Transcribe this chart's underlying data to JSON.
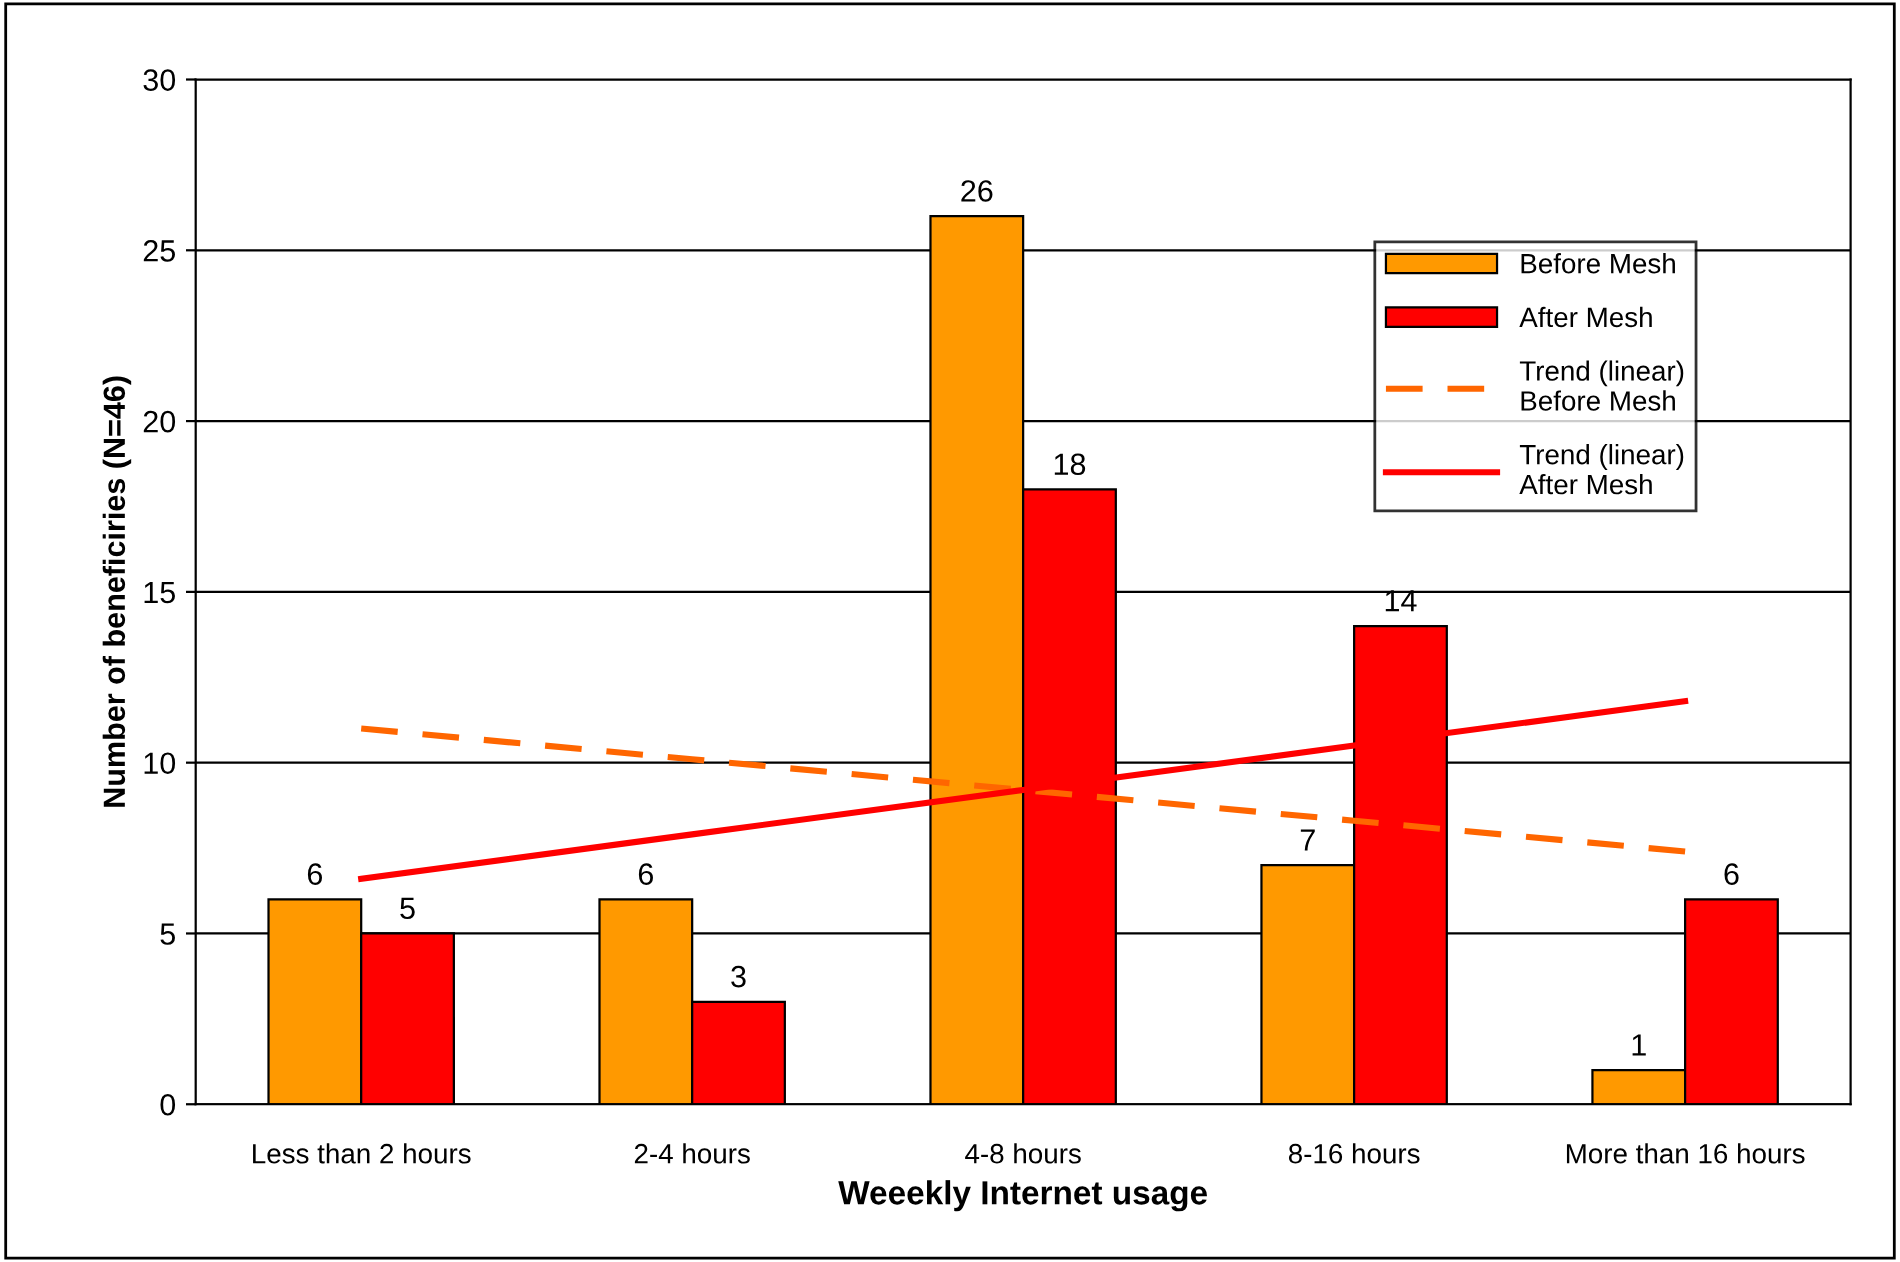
{
  "chart_data": {
    "type": "bar",
    "xlabel": "Weeekly Internet usage",
    "ylabel": "Number of beneficiries (N=46)",
    "categories": [
      "Less than 2 hours",
      "2-4 hours",
      "4-8 hours",
      "8-16 hours",
      "More than 16 hours"
    ],
    "series": [
      {
        "name": "Before Mesh",
        "color": "#ff9900",
        "values": [
          6,
          6,
          26,
          7,
          1
        ],
        "value_labels": [
          "6",
          "6",
          "26",
          "7",
          "1"
        ]
      },
      {
        "name": "After Mesh",
        "color": "#ff0000",
        "values": [
          5,
          3,
          18,
          14,
          6
        ],
        "value_labels": [
          "5",
          "3",
          "18",
          "14",
          "6"
        ]
      },
      {
        "name": "Trend (linear) Before Mesh",
        "type": "line",
        "line_style": "dashed",
        "color": "#ff6600",
        "values": [
          11.0,
          10.1,
          9.2,
          8.3,
          7.4
        ]
      },
      {
        "name": "Trend (linear) After Mesh",
        "type": "line",
        "line_style": "solid",
        "color": "#ff0000",
        "values": [
          6.6,
          7.9,
          9.2,
          10.5,
          11.8
        ]
      }
    ],
    "ylim": [
      0,
      30
    ],
    "yticks": [
      0,
      5,
      10,
      15,
      20,
      25,
      30
    ],
    "grid": "y",
    "legend": "top right"
  }
}
